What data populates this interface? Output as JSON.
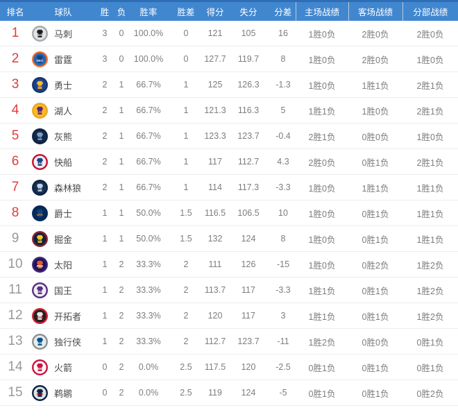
{
  "colors": {
    "header_bg": "#4187d0",
    "header_top": "#2f6eb5",
    "header_text": "#ffffff",
    "rank_highlight": "#e23b3b",
    "rank_normal": "#999999",
    "row_border": "#ededed",
    "text_primary": "#4a4a4a",
    "text_secondary": "#7d7d7d"
  },
  "table": {
    "columns": [
      {
        "key": "rank",
        "label": "排名"
      },
      {
        "key": "team",
        "label": "球队"
      },
      {
        "key": "wins",
        "label": "胜"
      },
      {
        "key": "losses",
        "label": "负"
      },
      {
        "key": "pct",
        "label": "胜率"
      },
      {
        "key": "gb",
        "label": "胜差"
      },
      {
        "key": "pf",
        "label": "得分"
      },
      {
        "key": "pa",
        "label": "失分"
      },
      {
        "key": "diff",
        "label": "分差"
      },
      {
        "key": "home",
        "label": "主场战绩"
      },
      {
        "key": "away",
        "label": "客场战绩"
      },
      {
        "key": "division",
        "label": "分部战绩"
      }
    ],
    "rows": [
      {
        "rank": "1",
        "highlight": true,
        "team": "马刺",
        "abbr": "SA",
        "logo": {
          "ring": "#a7a9ac",
          "bg": "#e3e4e5",
          "jersey": "#1d1d1d",
          "text": "#ffffff"
        },
        "wins": "3",
        "losses": "0",
        "pct": "100.0%",
        "gb": "0",
        "pf": "121",
        "pa": "105",
        "diff": "16",
        "home": "1胜0负",
        "away": "2胜0负",
        "division": "2胜0负"
      },
      {
        "rank": "2",
        "highlight": true,
        "team": "雷霆",
        "abbr": "OKC",
        "logo": {
          "ring": "#ef6b31",
          "bg": "#2366b2",
          "jersey": "#15417e",
          "text": "#ffffff"
        },
        "wins": "3",
        "losses": "0",
        "pct": "100.0%",
        "gb": "0",
        "pf": "127.7",
        "pa": "119.7",
        "diff": "8",
        "home": "1胜0负",
        "away": "2胜0负",
        "division": "1胜0负"
      },
      {
        "rank": "3",
        "highlight": true,
        "team": "勇士",
        "abbr": "GS",
        "logo": {
          "ring": "#143570",
          "bg": "#1d428a",
          "jersey": "#fdb927",
          "text": "#1d428a"
        },
        "wins": "2",
        "losses": "1",
        "pct": "66.7%",
        "gb": "1",
        "pf": "125",
        "pa": "126.3",
        "diff": "-1.3",
        "home": "1胜0负",
        "away": "1胜1负",
        "division": "2胜1负"
      },
      {
        "rank": "4",
        "highlight": true,
        "team": "湖人",
        "abbr": "LAL",
        "logo": {
          "ring": "#e9a820",
          "bg": "#fdb927",
          "jersey": "#552583",
          "text": "#fdb927"
        },
        "wins": "2",
        "losses": "1",
        "pct": "66.7%",
        "gb": "1",
        "pf": "121.3",
        "pa": "116.3",
        "diff": "5",
        "home": "1胜1负",
        "away": "1胜0负",
        "division": "2胜1负"
      },
      {
        "rank": "5",
        "highlight": true,
        "team": "灰熊",
        "abbr": "MEM",
        "logo": {
          "ring": "#0c2340",
          "bg": "#12284b",
          "jersey": "#7f9cc4",
          "text": "#0c2340"
        },
        "wins": "2",
        "losses": "1",
        "pct": "66.7%",
        "gb": "1",
        "pf": "123.3",
        "pa": "123.7",
        "diff": "-0.4",
        "home": "2胜1负",
        "away": "0胜0负",
        "division": "1胜0负"
      },
      {
        "rank": "6",
        "highlight": true,
        "team": "快船",
        "abbr": "LAC",
        "logo": {
          "ring": "#c8102e",
          "bg": "#eef0f2",
          "jersey": "#1d428a",
          "text": "#ffffff"
        },
        "wins": "2",
        "losses": "1",
        "pct": "66.7%",
        "gb": "1",
        "pf": "117",
        "pa": "112.7",
        "diff": "4.3",
        "home": "2胜0负",
        "away": "0胜1负",
        "division": "2胜1负"
      },
      {
        "rank": "7",
        "highlight": true,
        "team": "森林狼",
        "abbr": "MIN",
        "logo": {
          "ring": "#0c2340",
          "bg": "#123051",
          "jersey": "#c3d1e0",
          "text": "#0c2340"
        },
        "wins": "2",
        "losses": "1",
        "pct": "66.7%",
        "gb": "1",
        "pf": "114",
        "pa": "117.3",
        "diff": "-3.3",
        "home": "1胜0负",
        "away": "1胜1负",
        "division": "1胜1负"
      },
      {
        "rank": "8",
        "highlight": true,
        "team": "爵士",
        "abbr": "UTA",
        "logo": {
          "ring": "#05275d",
          "bg": "#002b5c",
          "jersey": "#1b3e77",
          "text": "#f9a01b"
        },
        "wins": "1",
        "losses": "1",
        "pct": "50.0%",
        "gb": "1.5",
        "pf": "116.5",
        "pa": "106.5",
        "diff": "10",
        "home": "1胜0负",
        "away": "0胜1负",
        "division": "1胜1负"
      },
      {
        "rank": "9",
        "highlight": false,
        "team": "掘金",
        "abbr": "DEN",
        "logo": {
          "ring": "#8b2332",
          "bg": "#0e2240",
          "jersey": "#fec524",
          "text": "#0e2240"
        },
        "wins": "1",
        "losses": "1",
        "pct": "50.0%",
        "gb": "1.5",
        "pf": "132",
        "pa": "124",
        "diff": "8",
        "home": "1胜0负",
        "away": "0胜1负",
        "division": "1胜1负"
      },
      {
        "rank": "10",
        "highlight": false,
        "team": "太阳",
        "abbr": "PHO",
        "logo": {
          "ring": "#3d2a76",
          "bg": "#1d1160",
          "jersey": "#e56020",
          "text": "#ffffff"
        },
        "wins": "1",
        "losses": "2",
        "pct": "33.3%",
        "gb": "2",
        "pf": "111",
        "pa": "126",
        "diff": "-15",
        "home": "1胜0负",
        "away": "0胜2负",
        "division": "1胜2负"
      },
      {
        "rank": "11",
        "highlight": false,
        "team": "国王",
        "abbr": "SAC",
        "logo": {
          "ring": "#5a2d81",
          "bg": "#efeff1",
          "jersey": "#5a2d81",
          "text": "#ffffff"
        },
        "wins": "1",
        "losses": "2",
        "pct": "33.3%",
        "gb": "2",
        "pf": "113.7",
        "pa": "117",
        "diff": "-3.3",
        "home": "1胜1负",
        "away": "0胜1负",
        "division": "1胜2负"
      },
      {
        "rank": "12",
        "highlight": false,
        "team": "开拓者",
        "abbr": "POR",
        "logo": {
          "ring": "#cf1f2f",
          "bg": "#231f20",
          "jersey": "#e6e7e8",
          "text": "#cf1f2f"
        },
        "wins": "1",
        "losses": "2",
        "pct": "33.3%",
        "gb": "2",
        "pf": "120",
        "pa": "117",
        "diff": "3",
        "home": "1胜1负",
        "away": "0胜1负",
        "division": "1胜2负"
      },
      {
        "rank": "13",
        "highlight": false,
        "team": "独行侠",
        "abbr": "DAL",
        "logo": {
          "ring": "#8d9093",
          "bg": "#e8eaec",
          "jersey": "#00538c",
          "text": "#ffffff"
        },
        "wins": "1",
        "losses": "2",
        "pct": "33.3%",
        "gb": "2",
        "pf": "112.7",
        "pa": "123.7",
        "diff": "-11",
        "home": "1胜2负",
        "away": "0胜0负",
        "division": "0胜1负"
      },
      {
        "rank": "14",
        "highlight": false,
        "team": "火箭",
        "abbr": "HOU",
        "logo": {
          "ring": "#ce1141",
          "bg": "#ffffff",
          "jersey": "#ce1141",
          "text": "#ffffff"
        },
        "wins": "0",
        "losses": "2",
        "pct": "0.0%",
        "gb": "2.5",
        "pf": "117.5",
        "pa": "120",
        "diff": "-2.5",
        "home": "0胜1负",
        "away": "0胜1负",
        "division": "0胜1负"
      },
      {
        "rank": "15",
        "highlight": false,
        "team": "鹈鹕",
        "abbr": "NOP",
        "logo": {
          "ring": "#0c2340",
          "bg": "#dfe3e8",
          "jersey": "#0c2340",
          "text": "#c8102e"
        },
        "wins": "0",
        "losses": "2",
        "pct": "0.0%",
        "gb": "2.5",
        "pf": "119",
        "pa": "124",
        "diff": "-5",
        "home": "0胜1负",
        "away": "0胜1负",
        "division": "0胜2负"
      }
    ]
  }
}
